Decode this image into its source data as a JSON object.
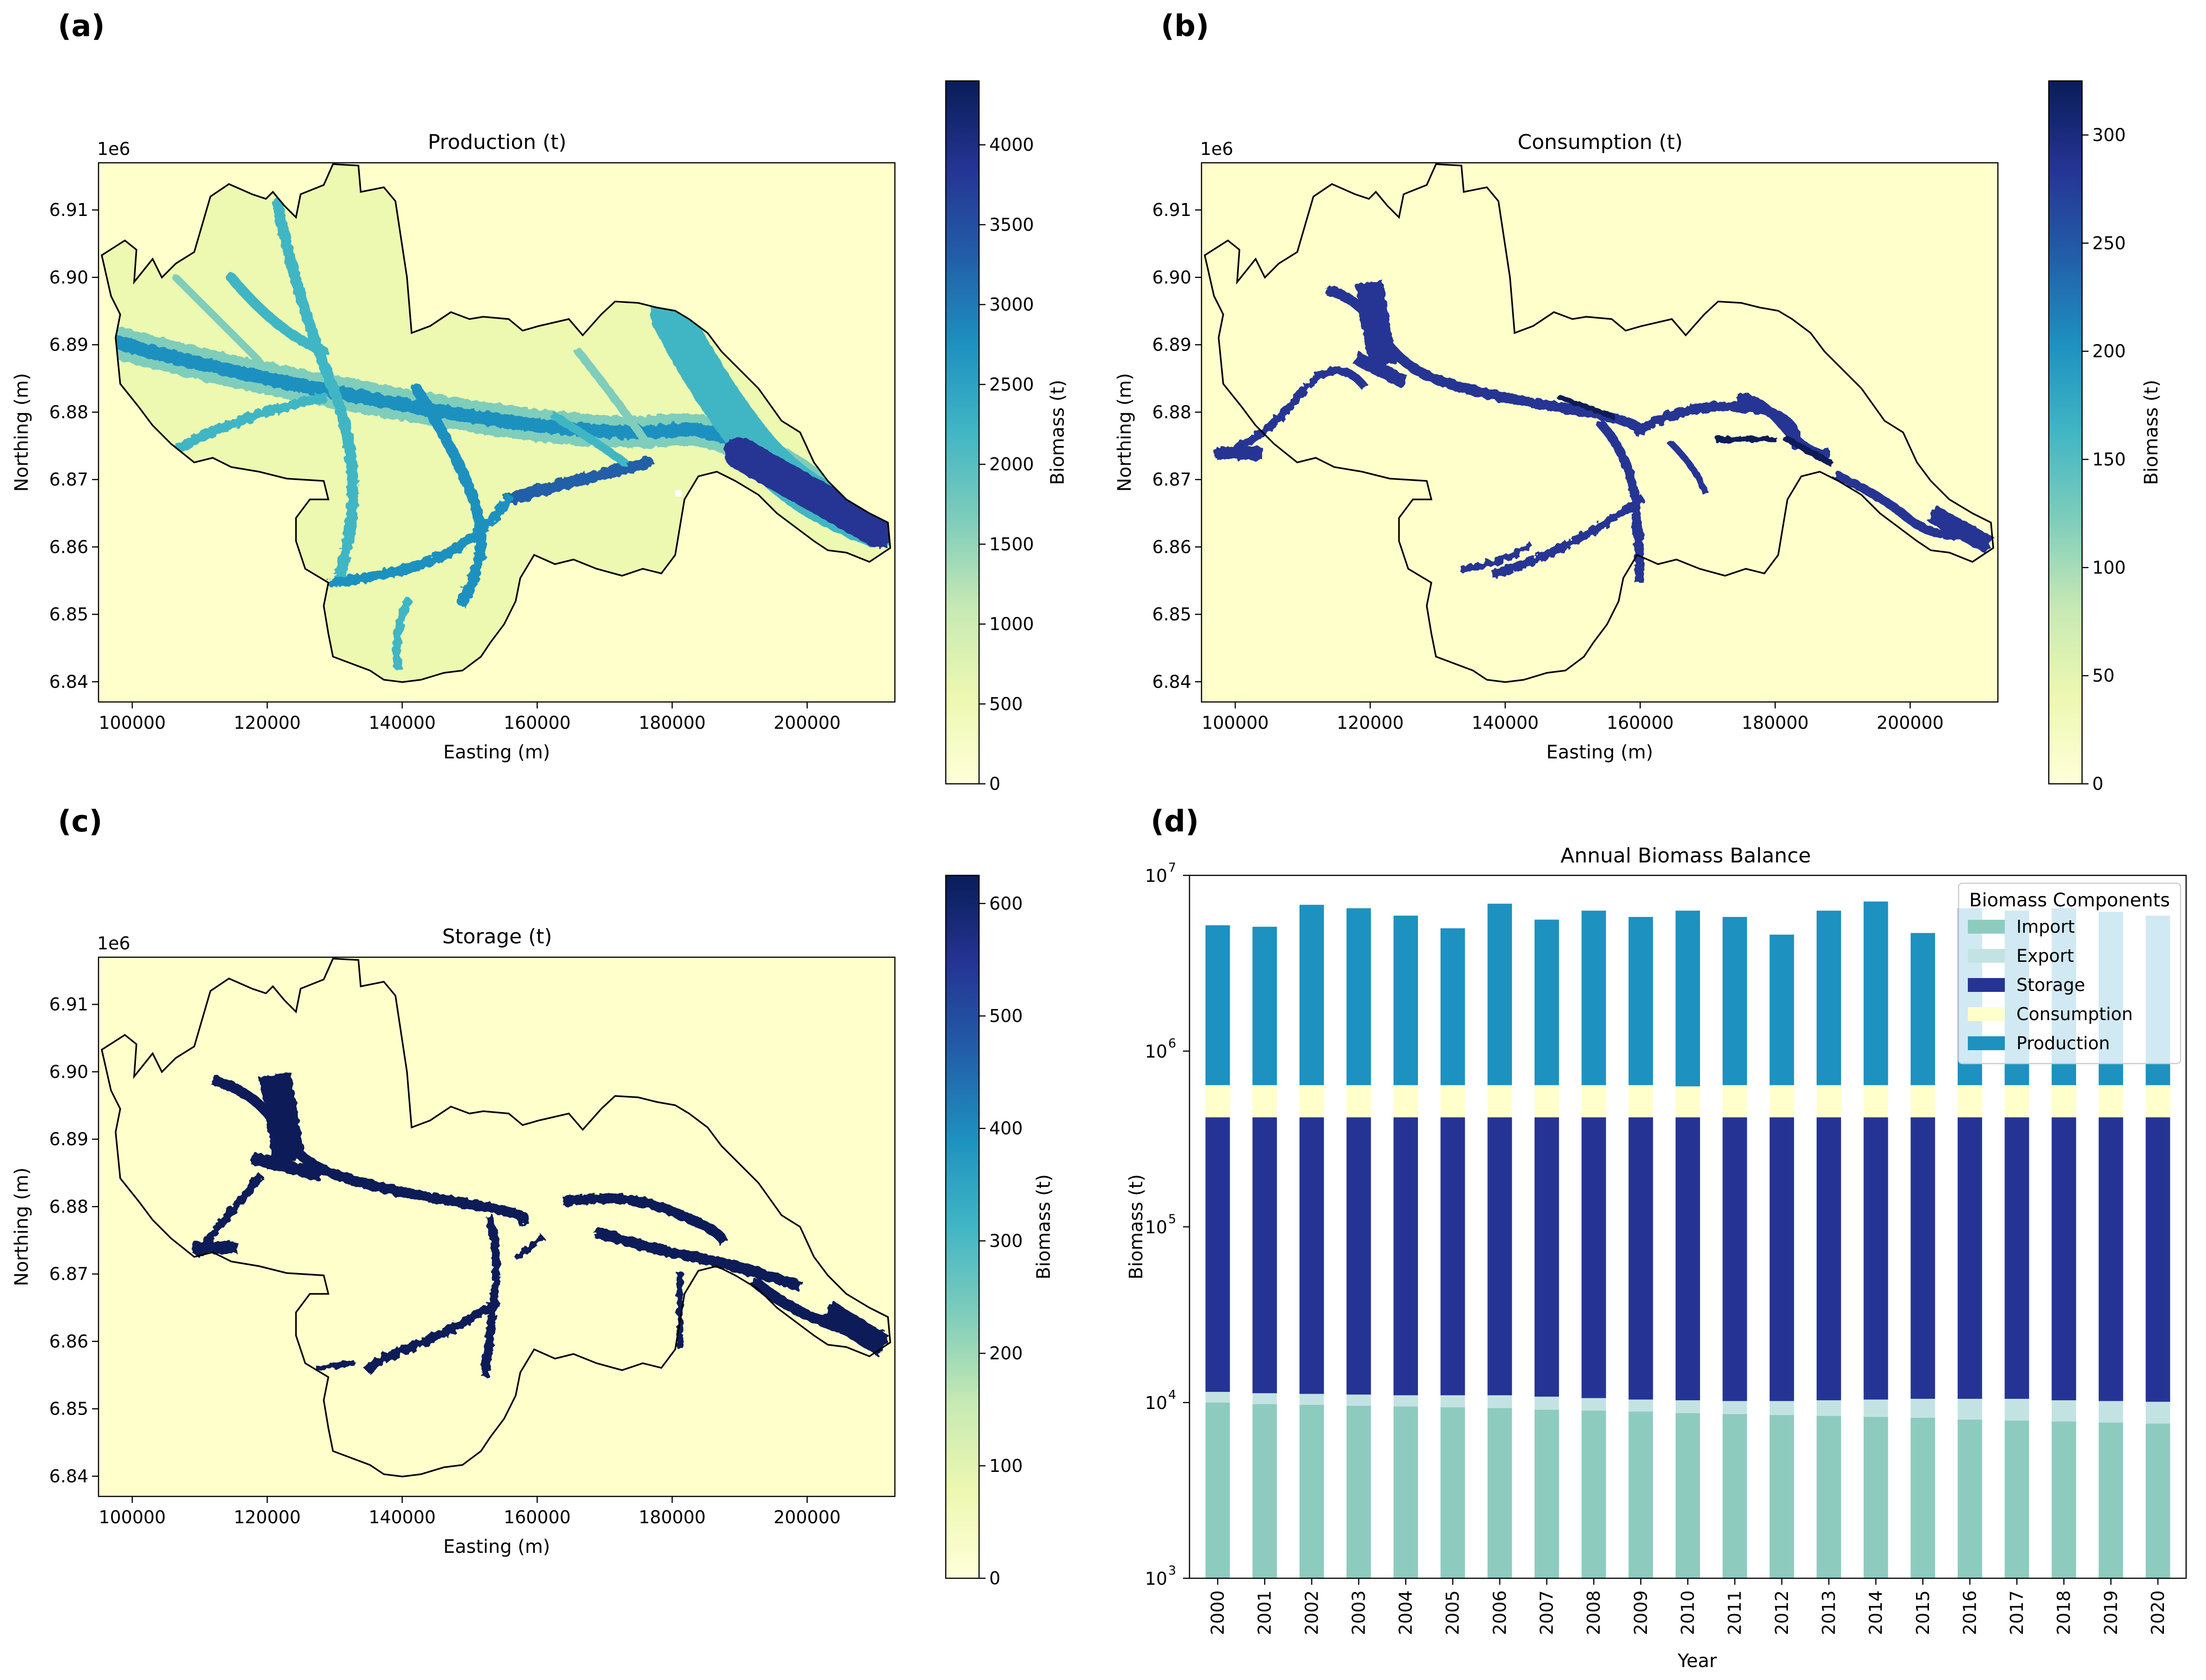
{
  "panels": [
    {
      "letter": "(a)",
      "title": "Production (t)",
      "xlabel": "Easting (m)",
      "ylabel": "Northing (m)",
      "offset": "1e6",
      "xticks": [
        "100000",
        "120000",
        "140000",
        "160000",
        "180000",
        "200000"
      ],
      "yticks": [
        "6.84",
        "6.85",
        "6.86",
        "6.87",
        "6.88",
        "6.89",
        "6.90",
        "6.91"
      ],
      "cbar_label": "Biomass (t)",
      "cbar_ticks": [
        "0",
        "500",
        "1000",
        "1500",
        "2000",
        "2500",
        "3000",
        "3500",
        "4000"
      ],
      "cbar_max": 4400
    },
    {
      "letter": "(b)",
      "title": "Consumption (t)",
      "xlabel": "Easting (m)",
      "ylabel": "Northing (m)",
      "offset": "1e6",
      "xticks": [
        "100000",
        "120000",
        "140000",
        "160000",
        "180000",
        "200000"
      ],
      "yticks": [
        "6.84",
        "6.85",
        "6.86",
        "6.87",
        "6.88",
        "6.89",
        "6.90",
        "6.91"
      ],
      "cbar_label": "Biomass (t)",
      "cbar_ticks": [
        "0",
        "50",
        "100",
        "150",
        "200",
        "250",
        "300"
      ],
      "cbar_max": 325
    },
    {
      "letter": "(c)",
      "title": "Storage (t)",
      "xlabel": "Easting (m)",
      "ylabel": "Northing (m)",
      "offset": "1e6",
      "xticks": [
        "100000",
        "120000",
        "140000",
        "160000",
        "180000",
        "200000"
      ],
      "yticks": [
        "6.84",
        "6.85",
        "6.86",
        "6.87",
        "6.88",
        "6.89",
        "6.90",
        "6.91"
      ],
      "cbar_label": "Biomass (t)",
      "cbar_ticks": [
        "0",
        "100",
        "200",
        "300",
        "400",
        "500",
        "600"
      ],
      "cbar_max": 625
    }
  ],
  "chart_data": {
    "letter": "(d)",
    "type": "bar",
    "title": "Annual Biomass Balance",
    "xlabel": "Year",
    "ylabel": "Biomass (t)",
    "yscale": "log",
    "ylim": [
      1000,
      10000000
    ],
    "yticks": [
      {
        "base": "10",
        "exp": "3"
      },
      {
        "base": "10",
        "exp": "4"
      },
      {
        "base": "10",
        "exp": "5"
      },
      {
        "base": "10",
        "exp": "6"
      },
      {
        "base": "10",
        "exp": "7"
      }
    ],
    "categories": [
      "2000",
      "2001",
      "2002",
      "2003",
      "2004",
      "2005",
      "2006",
      "2007",
      "2008",
      "2009",
      "2010",
      "2011",
      "2012",
      "2013",
      "2014",
      "2015",
      "2016",
      "2017",
      "2018",
      "2019",
      "2020"
    ],
    "legend_title": "Biomass Components",
    "legend_position": "top-right",
    "series": [
      {
        "name": "Import",
        "color": "#8ecbbf",
        "values": [
          10000,
          9800,
          9700,
          9600,
          9500,
          9400,
          9300,
          9100,
          9000,
          8900,
          8700,
          8600,
          8500,
          8400,
          8300,
          8200,
          8000,
          7900,
          7800,
          7700,
          7600
        ]
      },
      {
        "name": "Export",
        "color": "#c3e3e3",
        "values": [
          11500,
          11300,
          11200,
          11100,
          11000,
          11000,
          11000,
          10800,
          10600,
          10400,
          10300,
          10200,
          10200,
          10300,
          10400,
          10500,
          10500,
          10500,
          10300,
          10200,
          10100
        ]
      },
      {
        "name": "Storage",
        "color": "#253494",
        "values": [
          420000,
          420000,
          420000,
          420000,
          420000,
          420000,
          420000,
          420000,
          420000,
          420000,
          420000,
          420000,
          420000,
          420000,
          420000,
          420000,
          420000,
          420000,
          420000,
          420000,
          420000
        ]
      },
      {
        "name": "Consumption",
        "color": "#ffffcc",
        "values": [
          640000,
          640000,
          640000,
          640000,
          640000,
          640000,
          640000,
          640000,
          640000,
          640000,
          630000,
          640000,
          640000,
          640000,
          640000,
          640000,
          640000,
          640000,
          640000,
          640000,
          640000
        ]
      },
      {
        "name": "Production",
        "color": "#1d91c0",
        "values": [
          5200000,
          5100000,
          6800000,
          6500000,
          5900000,
          5000000,
          6900000,
          5600000,
          6300000,
          5800000,
          6300000,
          5800000,
          4600000,
          6300000,
          7100000,
          4700000,
          6500000,
          6300000,
          6500000,
          6200000,
          5900000
        ]
      }
    ]
  }
}
